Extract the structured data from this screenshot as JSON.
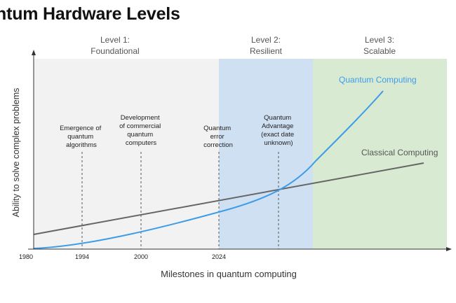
{
  "title": "ntum Hardware Levels",
  "y_axis_label": "Ability to solve complex problems",
  "x_axis_label": "Milestones in quantum computing",
  "levels": [
    {
      "line1": "Level 1:",
      "line2": "Foundational",
      "color": "#f2f2f2"
    },
    {
      "line1": "Level 2:",
      "line2": "Resilient",
      "color": "#cfe0f3"
    },
    {
      "line1": "Level 3:",
      "line2": "Scalable",
      "color": "#d9ead3"
    }
  ],
  "milestones": [
    {
      "lines": [
        "Emergence of",
        "quantum",
        "algorithms"
      ]
    },
    {
      "lines": [
        "Development",
        "of commercial",
        "quantum",
        "computers"
      ]
    },
    {
      "lines": [
        "Quantum",
        "error",
        "correction"
      ]
    },
    {
      "lines": [
        "Quantum",
        "Advantage",
        "(exact date",
        "unknown)"
      ]
    }
  ],
  "x_ticks": [
    "1980",
    "1994",
    "2000",
    "2024"
  ],
  "series": {
    "quantum": {
      "name": "Quantum Computing",
      "color": "#3d9ce8"
    },
    "classical": {
      "name": "Classical Computing",
      "color": "#666666"
    }
  }
}
